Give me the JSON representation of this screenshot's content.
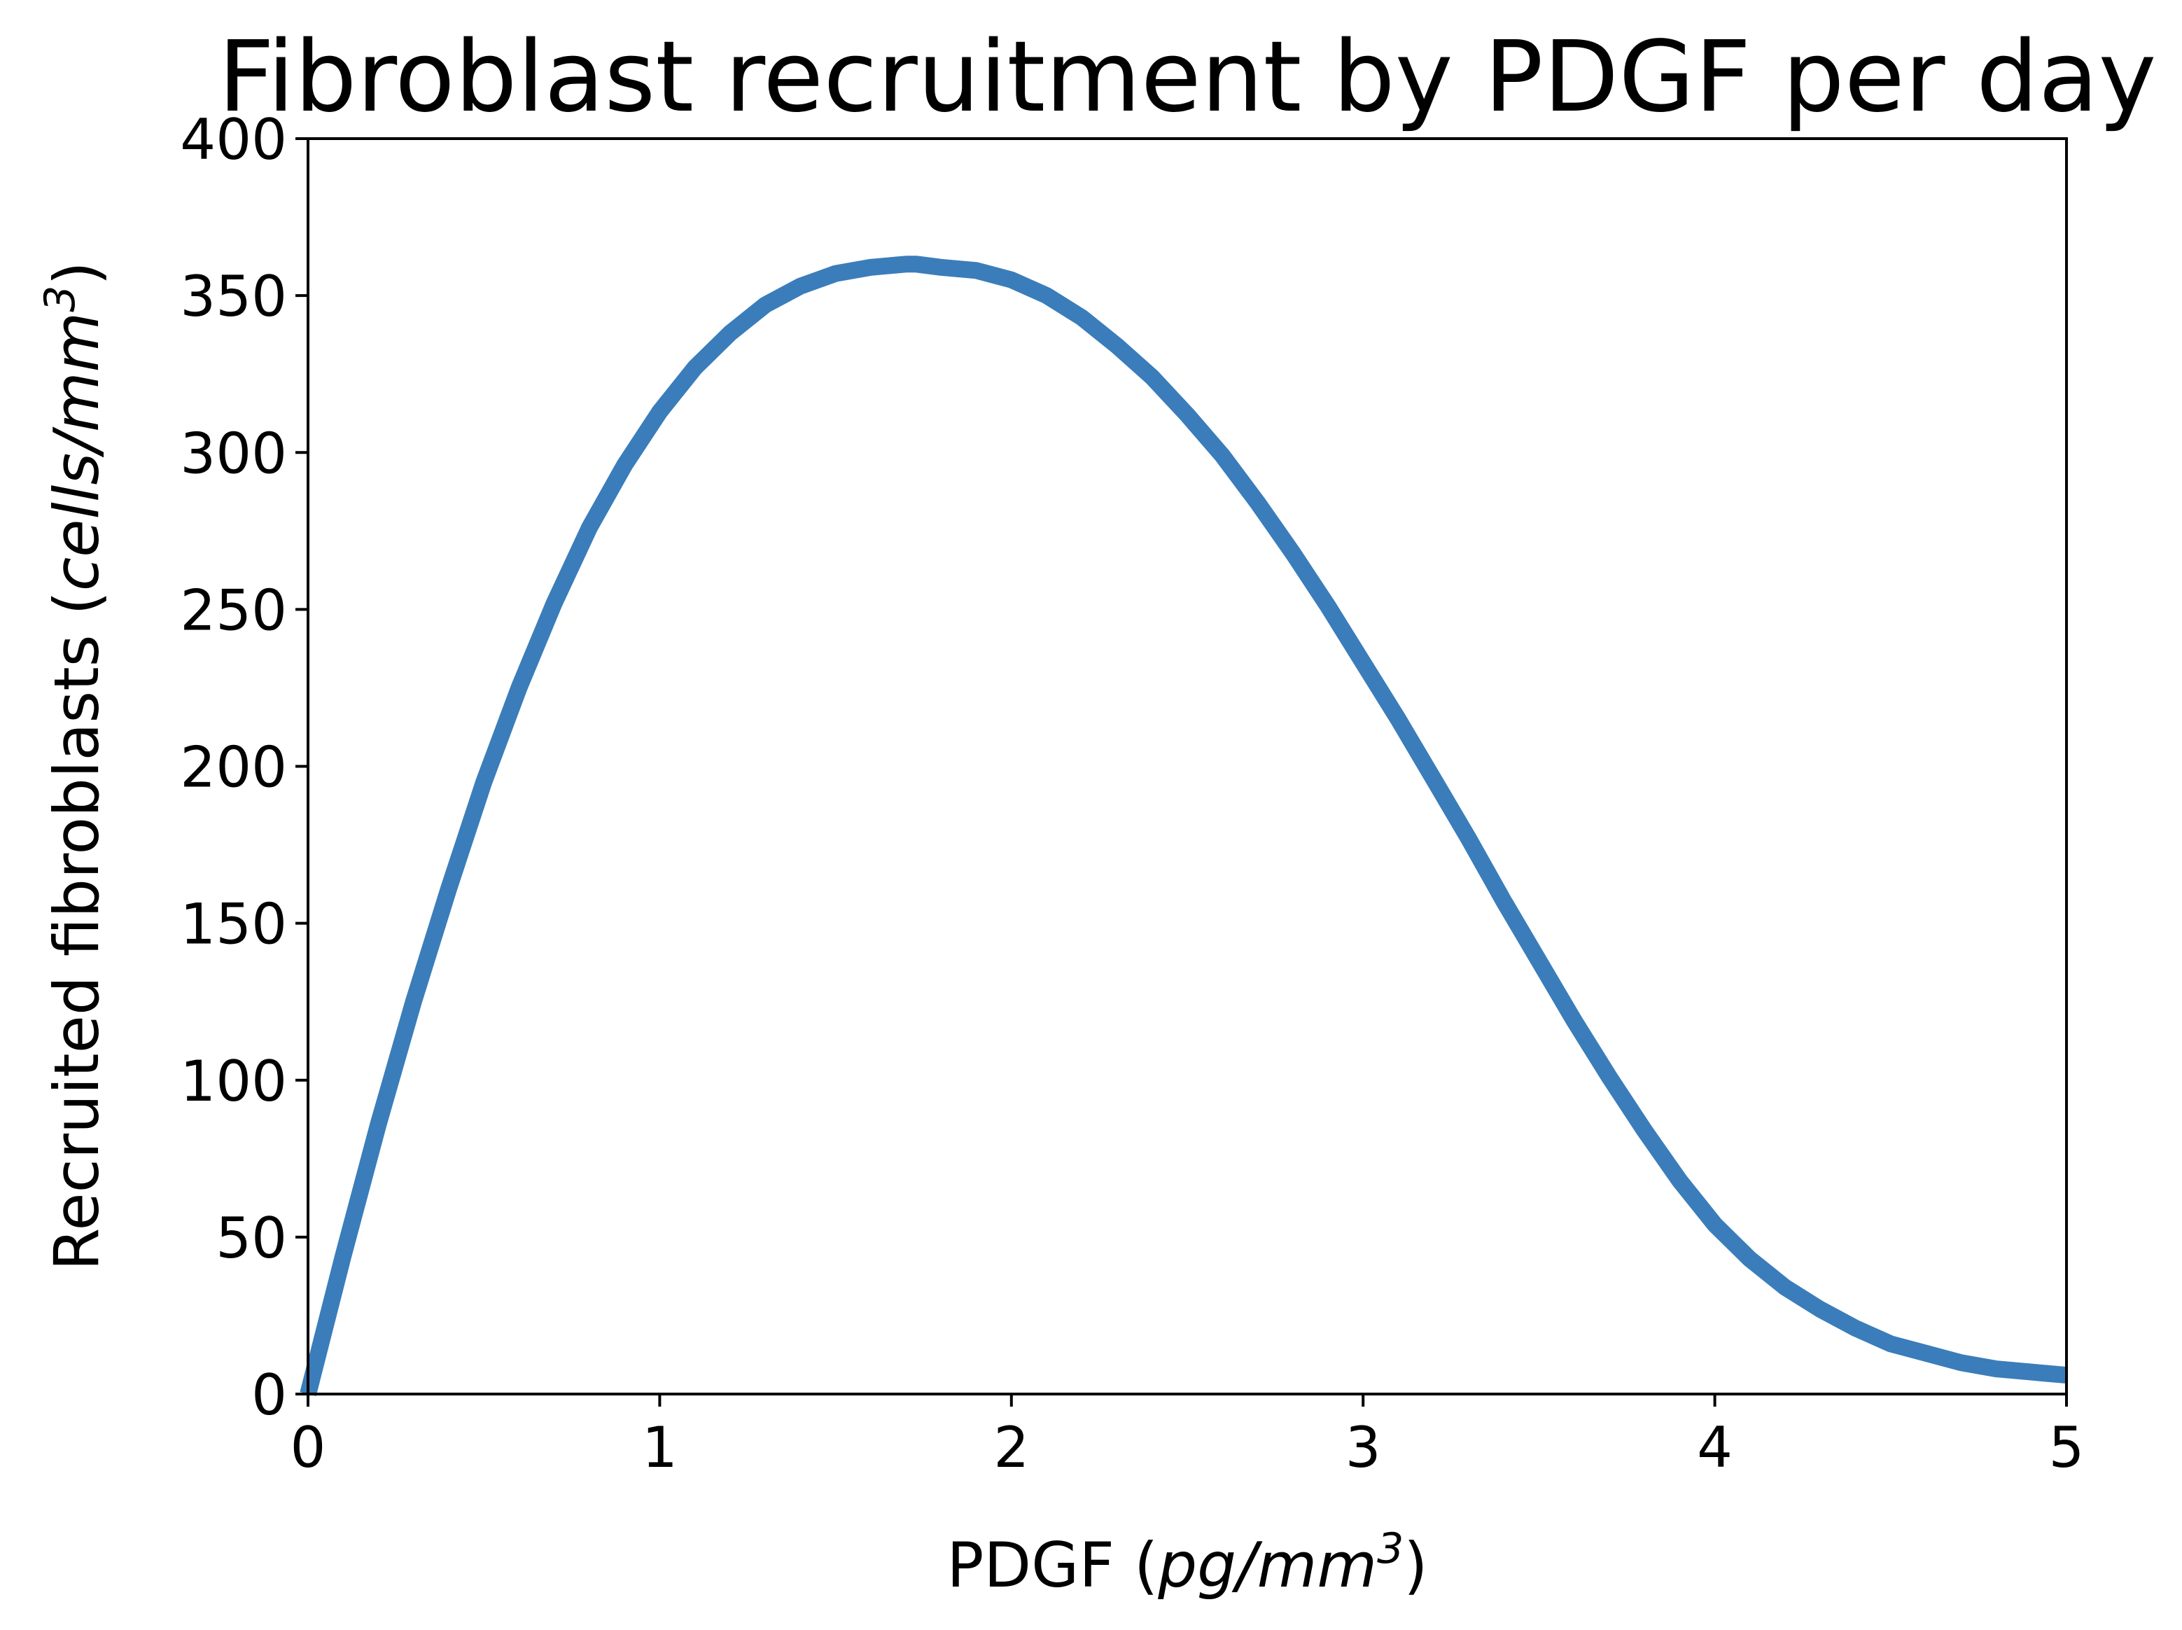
{
  "chart_data": {
    "type": "line",
    "title": "Fibroblast recruitment by PDGF per day",
    "xlabel": {
      "prefix": "PDGF (",
      "italic": "pg/mm",
      "sup": "3",
      "suffix": ")"
    },
    "ylabel": {
      "prefix": "Recruited fibroblasts (",
      "italic": "cells/mm",
      "sup": "3",
      "suffix": ")"
    },
    "xlim": [
      0,
      5
    ],
    "ylim": [
      0,
      400
    ],
    "xticks": [
      0,
      1,
      2,
      3,
      4,
      5
    ],
    "xtick_labels": [
      "0",
      "1",
      "2",
      "3",
      "4",
      "5"
    ],
    "yticks": [
      0,
      50,
      100,
      150,
      200,
      250,
      300,
      350,
      400
    ],
    "ytick_labels": [
      "0",
      "50",
      "100",
      "150",
      "200",
      "250",
      "300",
      "350",
      "400"
    ],
    "grid": false,
    "legend": "none",
    "series": [
      {
        "color": "#3a7dba",
        "x": [
          0,
          0.1,
          0.2,
          0.3,
          0.4,
          0.5,
          0.6,
          0.7,
          0.8,
          0.9,
          1.0,
          1.1,
          1.2,
          1.3,
          1.4,
          1.5,
          1.6,
          1.7,
          1.73,
          1.8,
          1.9,
          2.0,
          2.1,
          2.2,
          2.3,
          2.4,
          2.5,
          2.6,
          2.7,
          2.8,
          2.9,
          3.0,
          3.1,
          3.2,
          3.3,
          3.4,
          3.5,
          3.6,
          3.7,
          3.8,
          3.9,
          4.0,
          4.1,
          4.2,
          4.3,
          4.4,
          4.5,
          4.6,
          4.7,
          4.8,
          4.9,
          5.0
        ],
        "y": [
          0,
          44,
          86,
          125,
          161,
          195,
          225,
          252,
          276,
          296,
          313,
          327,
          338,
          347,
          353,
          357,
          359,
          360,
          360,
          359,
          358,
          355,
          350,
          343,
          334,
          324,
          312,
          299,
          284,
          268,
          251,
          233,
          215,
          196,
          177,
          157,
          138,
          119,
          101,
          84,
          68,
          54,
          43,
          34,
          27,
          21,
          16,
          13,
          10,
          8,
          7,
          6
        ]
      }
    ]
  }
}
